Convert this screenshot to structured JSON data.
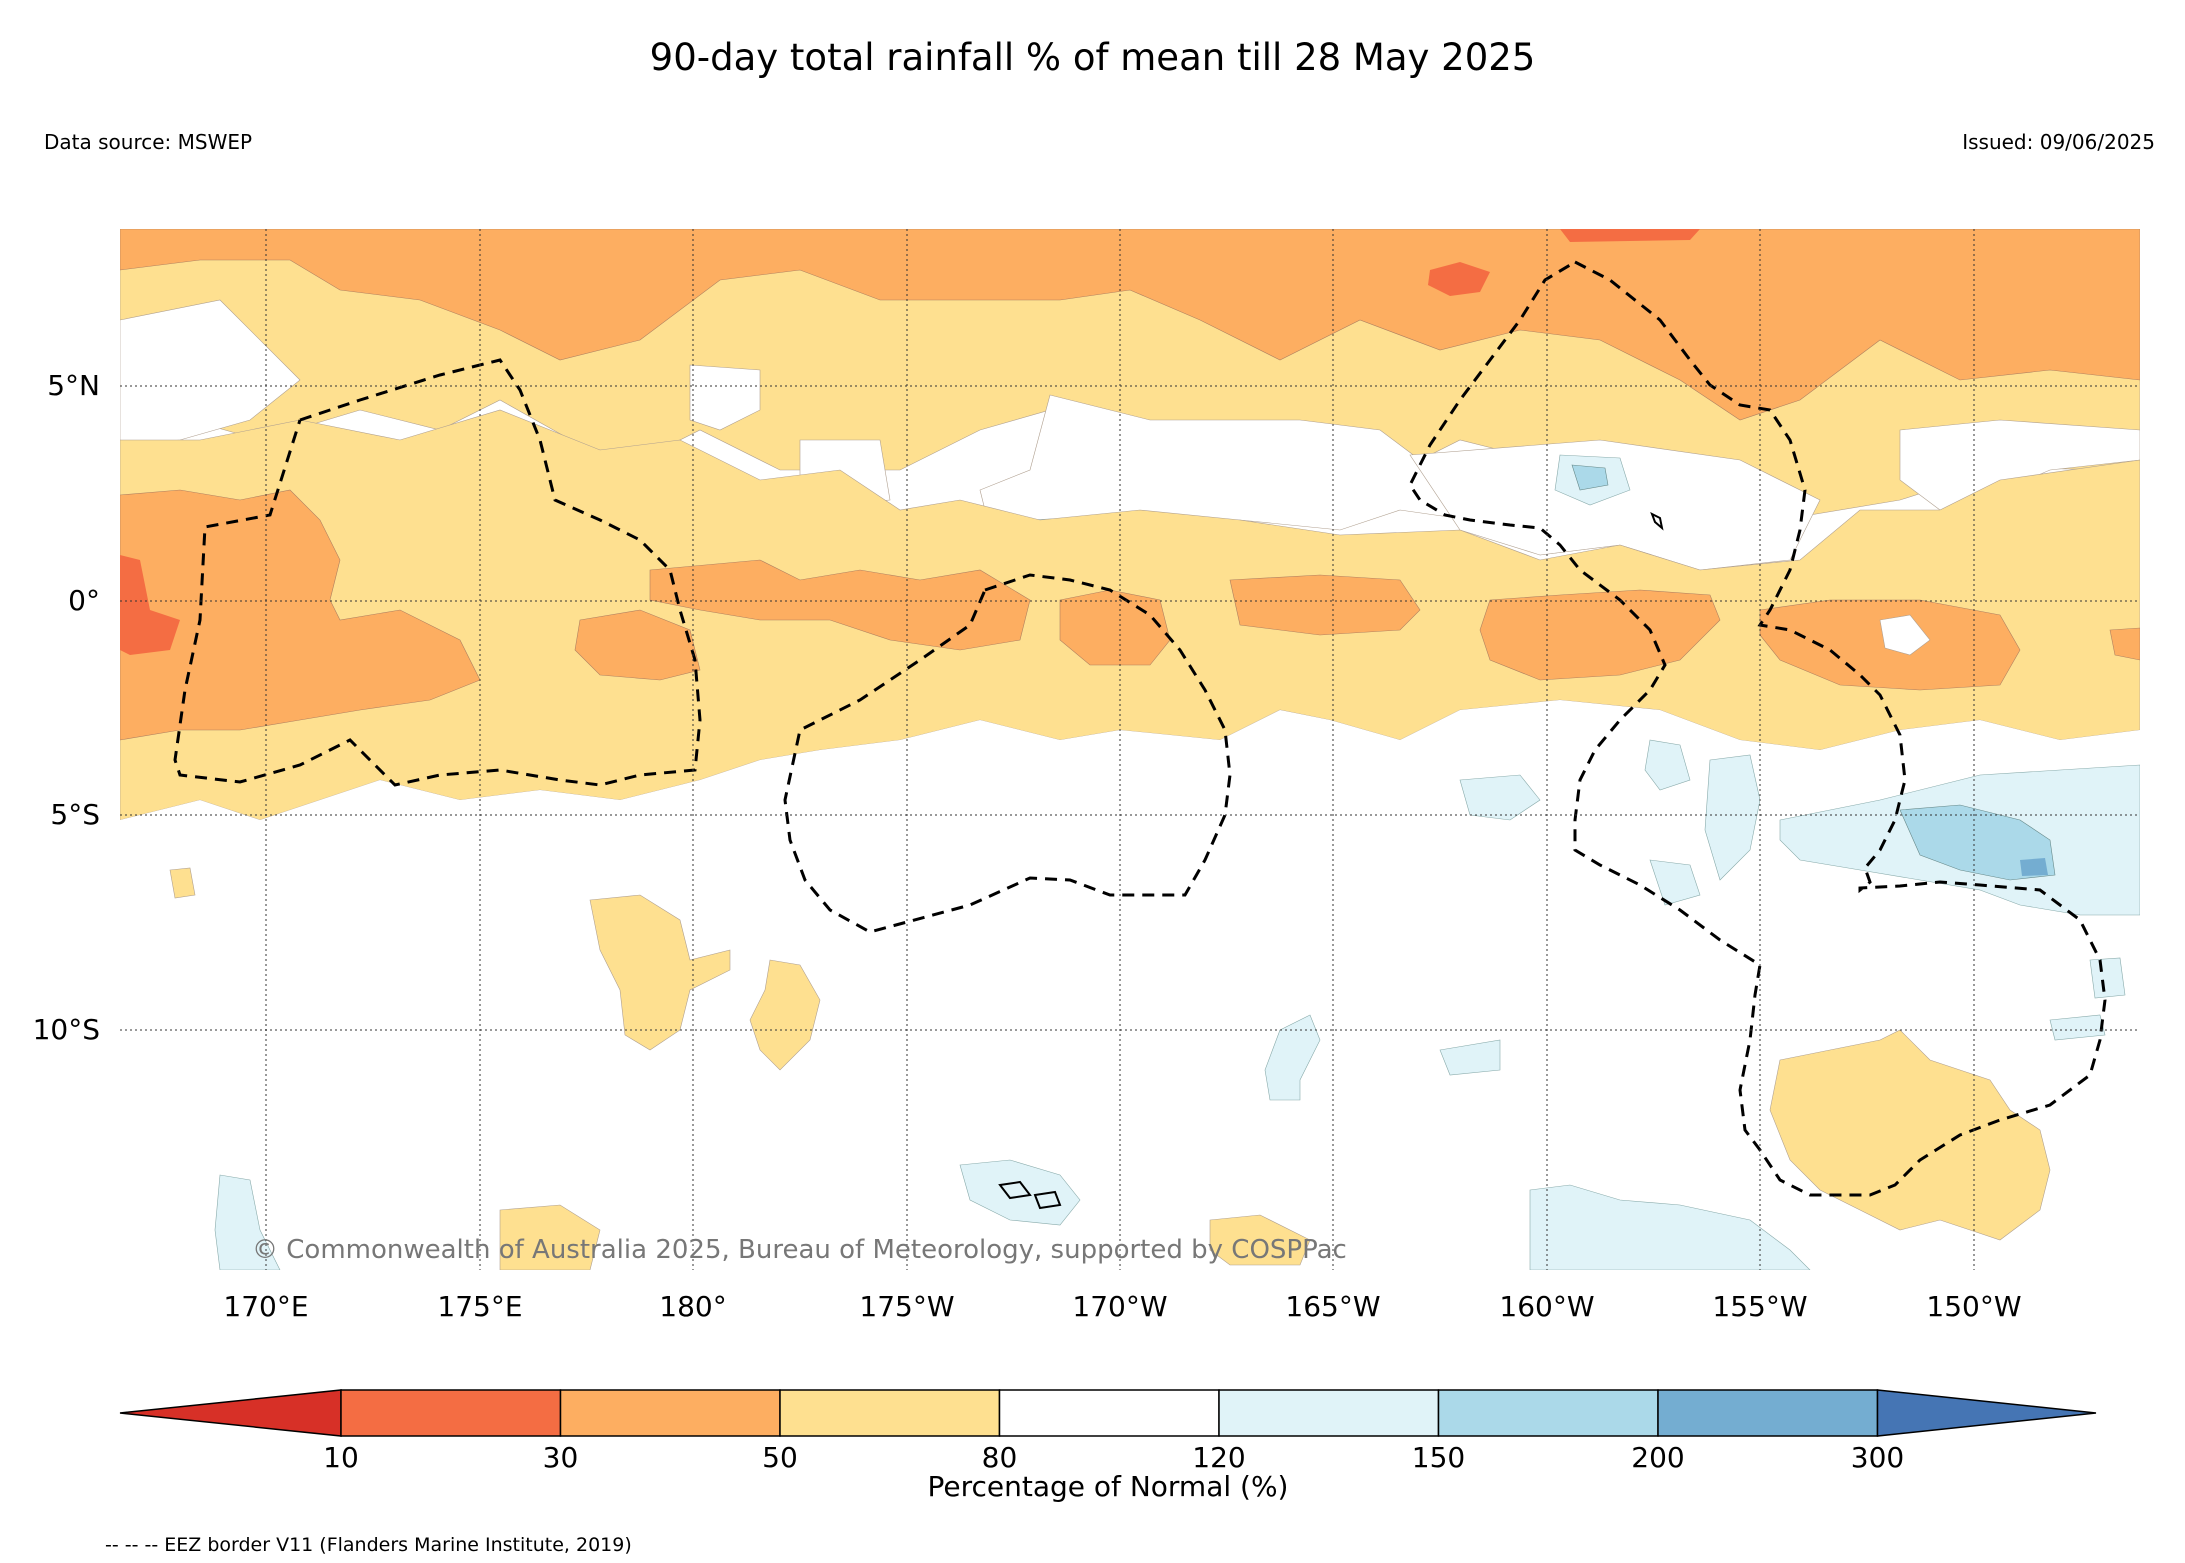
{
  "title": "90-day total rainfall % of mean till 28 May 2025",
  "data_source": "Data source: MSWEP",
  "issued": "Issued: 09/06/2025",
  "copyright": "© Commonwealth of Australia 2025, Bureau of Meteorology, supported by COSPPac",
  "lat_labels": [
    "5°N",
    "0°",
    "5°S",
    "10°S"
  ],
  "lon_labels": [
    "170°E",
    "175°E",
    "180°",
    "175°W",
    "170°W",
    "165°W",
    "160°W",
    "155°W",
    "150°W"
  ],
  "colorbar": {
    "label": "Percentage of Normal (%)",
    "ticks": [
      "10",
      "30",
      "50",
      "80",
      "120",
      "150",
      "200",
      "300"
    ],
    "colors": [
      "#d73027",
      "#f46d43",
      "#fdae61",
      "#fee090",
      "#ffffff",
      "#e0f3f8",
      "#abd9e9",
      "#74add1",
      "#4575b4"
    ]
  },
  "legend_note": "-- -- -- EEZ border V11 (Flanders Marine Institute, 2019)"
}
